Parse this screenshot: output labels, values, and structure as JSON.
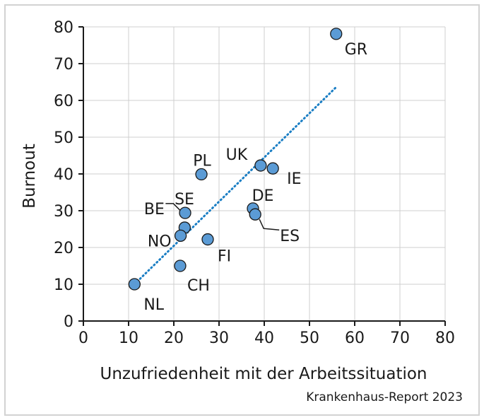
{
  "source_note": "Krankenhaus-Report 2023",
  "chart_data": {
    "type": "scatter",
    "xlabel": "Unzufriedenheit mit der Arbeitssituation",
    "ylabel": "Burnout",
    "xlim": [
      0,
      80
    ],
    "ylim": [
      0,
      80
    ],
    "xticks": [
      0,
      10,
      20,
      30,
      40,
      50,
      60,
      70,
      80
    ],
    "yticks": [
      0,
      10,
      20,
      30,
      40,
      50,
      60,
      70,
      80
    ],
    "grid": true,
    "marker_color": "#5b9bd5",
    "trendline_color": "#1a7ec4",
    "points": [
      {
        "label": "GR",
        "x": 55.9,
        "y": 78.1
      },
      {
        "label": "UK",
        "x": 39.2,
        "y": 42.3
      },
      {
        "label": "IE",
        "x": 41.9,
        "y": 41.5
      },
      {
        "label": "PL",
        "x": 26.1,
        "y": 39.9
      },
      {
        "label": "DE",
        "x": 37.5,
        "y": 30.6
      },
      {
        "label": "ES",
        "x": 38.0,
        "y": 29.0
      },
      {
        "label": "SE",
        "x": 22.5,
        "y": 29.4
      },
      {
        "label": "BE",
        "x": 22.4,
        "y": 25.4
      },
      {
        "label": "NO",
        "x": 21.5,
        "y": 23.2
      },
      {
        "label": "FI",
        "x": 27.5,
        "y": 22.2
      },
      {
        "label": "CH",
        "x": 21.4,
        "y": 15.0
      },
      {
        "label": "NL",
        "x": 11.3,
        "y": 10.0
      }
    ],
    "trendline": {
      "x": [
        11.3,
        55.9
      ],
      "y": [
        10.0,
        63.6
      ]
    }
  }
}
